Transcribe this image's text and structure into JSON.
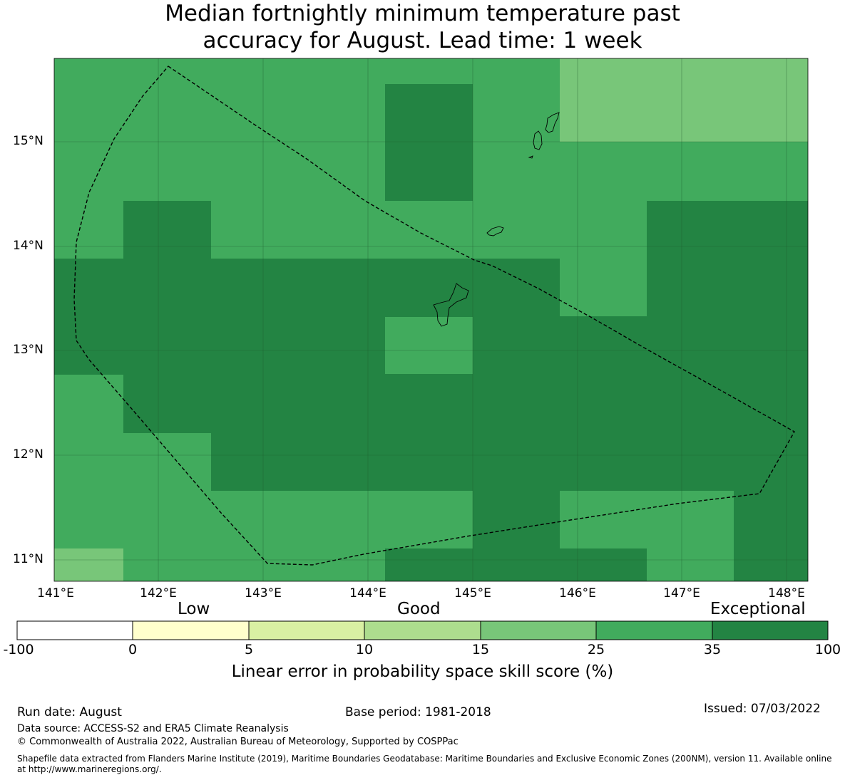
{
  "title_line1": "Median fortnightly minimum temperature past",
  "title_line2": "accuracy for August. Lead time: 1 week",
  "map": {
    "lon_labels": [
      "141°E",
      "142°E",
      "143°E",
      "144°E",
      "145°E",
      "146°E",
      "147°E",
      "148°E"
    ],
    "lat_labels": [
      "15°N",
      "14°N",
      "13°N",
      "12°N",
      "11°N"
    ]
  },
  "colorbar": {
    "categories": [
      "Low",
      "Good",
      "Exceptional"
    ],
    "ticks": [
      "-100",
      "0",
      "5",
      "10",
      "15",
      "25",
      "35",
      "100"
    ],
    "colors": [
      "#ffffff",
      "#ffffcc",
      "#d9f0a3",
      "#addd8e",
      "#78c679",
      "#41ab5d",
      "#238443"
    ],
    "label": "Linear error in probability space skill score (%)"
  },
  "footer": {
    "run_date": "Run date: August",
    "base_period": "Base period: 1981-2018",
    "issued": "Issued: 07/03/2022",
    "data_source": "Data source: ACCESS-S2 and ERA5 Climate Reanalysis",
    "copyright": "© Commonwealth of Australia 2022, Australian Bureau of Meteorology, Supported by COSPPac",
    "shapefile_line1": "Shapefile data extracted from Flanders Marine Institute (2019), Maritime Boundaries Geodatabase: Maritime Boundaries and Exclusive Economic Zones (200NM), version 11. Available online",
    "shapefile_line2": "at http://www.marineregions.org/."
  }
}
